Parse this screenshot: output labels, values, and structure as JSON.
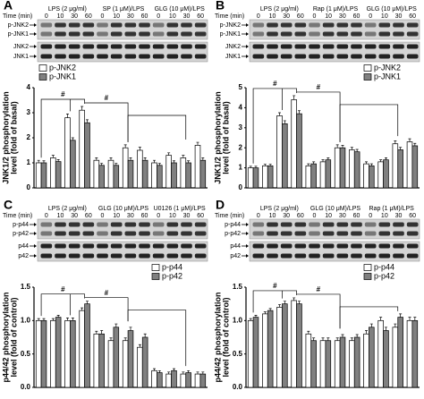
{
  "chart_data": [
    {
      "type": "bar",
      "panel": "A",
      "blot": {
        "time_title": "Time (min)",
        "treatments": [
          "LPS (2 μg/ml)",
          "SP (1 μM)/LPS",
          "GLG (10 μM)/LPS"
        ],
        "times": [
          "0",
          "10",
          "30",
          "60"
        ],
        "rows": [
          "p-JNK2",
          "p-JNK1",
          "JNK2",
          "JNK1"
        ]
      },
      "ylabel": [
        "JNK1/2 phosphorylation",
        "level (fold of basal)"
      ],
      "categories": [
        null,
        null,
        null,
        null,
        null,
        null,
        null,
        null,
        null,
        null,
        null,
        null
      ],
      "series": [
        {
          "name": "p-JNK2",
          "color": "#ffffff",
          "values": [
            1.0,
            1.2,
            2.8,
            3.1,
            1.1,
            1.1,
            1.6,
            1.5,
            1.0,
            1.3,
            1.2,
            1.7
          ],
          "errors": [
            0.1,
            0.1,
            0.15,
            0.15,
            0.1,
            0.1,
            0.12,
            0.12,
            0.1,
            0.1,
            0.1,
            0.12
          ]
        },
        {
          "name": "p-JNK1",
          "color": "#808080",
          "values": [
            1.0,
            1.05,
            1.9,
            2.6,
            0.9,
            0.9,
            1.1,
            1.1,
            0.9,
            1.0,
            1.0,
            1.1
          ],
          "errors": [
            0.08,
            0.08,
            0.1,
            0.12,
            0.08,
            0.08,
            0.1,
            0.1,
            0.08,
            0.08,
            0.08,
            0.1
          ]
        }
      ],
      "ylim": [
        0,
        4
      ],
      "yticks": [
        0,
        1,
        2,
        3,
        4
      ],
      "legend": "top-left",
      "annotations": [
        "#",
        "#"
      ]
    },
    {
      "type": "bar",
      "panel": "B",
      "blot": {
        "time_title": "Time (min)",
        "treatments": [
          "LPS (2 μg/ml)",
          "Rap (1 μM)/LPS",
          "GLG (10 μM)/LPS"
        ],
        "times": [
          "0",
          "10",
          "30",
          "60"
        ],
        "rows": [
          "p-JNK2",
          "p-JNK1",
          "JNK2",
          "JNK1"
        ]
      },
      "ylabel": [
        "JNK1/2 phosphorylation",
        "level (fold of basal)"
      ],
      "categories": [
        null,
        null,
        null,
        null,
        null,
        null,
        null,
        null,
        null,
        null,
        null,
        null
      ],
      "series": [
        {
          "name": "p-JNK2",
          "color": "#ffffff",
          "values": [
            1.0,
            1.1,
            3.6,
            4.4,
            1.1,
            1.3,
            2.0,
            1.9,
            1.2,
            1.3,
            2.2,
            2.3
          ],
          "errors": [
            0.08,
            0.08,
            0.15,
            0.2,
            0.1,
            0.1,
            0.15,
            0.12,
            0.1,
            0.1,
            0.15,
            0.15
          ]
        },
        {
          "name": "p-JNK1",
          "color": "#808080",
          "values": [
            1.0,
            1.1,
            3.2,
            3.7,
            1.2,
            1.4,
            2.0,
            1.8,
            1.1,
            1.4,
            1.9,
            2.1
          ],
          "errors": [
            0.08,
            0.08,
            0.15,
            0.15,
            0.1,
            0.1,
            0.12,
            0.12,
            0.1,
            0.1,
            0.12,
            0.12
          ]
        }
      ],
      "ylim": [
        0,
        5
      ],
      "yticks": [
        0,
        1,
        2,
        3,
        4,
        5
      ],
      "legend": "top-right",
      "annotations": [
        "#",
        "#"
      ]
    },
    {
      "type": "bar",
      "panel": "C",
      "blot": {
        "time_title": "Time (min)",
        "treatments": [
          "LPS (2 μg/ml)",
          "GLG (10 μM)/LPS",
          "U0126 (1 μM)/LPS"
        ],
        "times": [
          "0",
          "10",
          "30",
          "60"
        ],
        "rows": [
          "p-p44",
          "p-p42",
          "p44",
          "p42"
        ]
      },
      "ylabel": [
        "p44/42 phosphorylation",
        "level (fold of control)"
      ],
      "categories": [
        null,
        null,
        null,
        null,
        null,
        null,
        null,
        null,
        null,
        null,
        null,
        null
      ],
      "series": [
        {
          "name": "p-p44",
          "color": "#ffffff",
          "values": [
            1.0,
            1.0,
            1.0,
            1.15,
            0.8,
            0.7,
            0.7,
            0.6,
            0.25,
            0.2,
            0.2,
            0.2
          ],
          "errors": [
            0.03,
            0.03,
            0.04,
            0.04,
            0.04,
            0.04,
            0.04,
            0.04,
            0.03,
            0.03,
            0.03,
            0.03
          ]
        },
        {
          "name": "p-p42",
          "color": "#808080",
          "values": [
            1.0,
            1.05,
            1.0,
            1.25,
            0.8,
            0.9,
            0.85,
            0.75,
            0.22,
            0.25,
            0.22,
            0.2
          ],
          "errors": [
            0.03,
            0.03,
            0.04,
            0.04,
            0.05,
            0.05,
            0.05,
            0.05,
            0.03,
            0.03,
            0.03,
            0.03
          ]
        }
      ],
      "ylim": [
        0,
        1.5
      ],
      "yticks": [
        {
          "value": 0,
          "label": "0.0"
        },
        0.5,
        {
          "value": 1,
          "label": "1.0"
        },
        1.5
      ],
      "legend": "top-right",
      "annotations": [
        "#",
        "#"
      ]
    },
    {
      "type": "bar",
      "panel": "D",
      "blot": {
        "time_title": "Time (min)",
        "treatments": [
          "LPS (2 μg/ml)",
          "GLG (10 μM)/LPS",
          "Rap (1 μM)/LPS"
        ],
        "times": [
          "0",
          "10",
          "30",
          "60"
        ],
        "rows": [
          "p-p44",
          "p-p42",
          "p44",
          "p42"
        ]
      },
      "ylabel": [
        "p44/42 phosphorylation",
        "level (fold of control)"
      ],
      "categories": [
        null,
        null,
        null,
        null,
        null,
        null,
        null,
        null,
        null,
        null,
        null,
        null
      ],
      "series": [
        {
          "name": "p-p44",
          "color": "#ffffff",
          "values": [
            1.0,
            1.1,
            1.2,
            1.3,
            0.8,
            0.7,
            0.7,
            0.7,
            0.8,
            1.0,
            0.9,
            1.0
          ],
          "errors": [
            0.03,
            0.03,
            0.04,
            0.04,
            0.04,
            0.04,
            0.04,
            0.04,
            0.05,
            0.05,
            0.05,
            0.05
          ]
        },
        {
          "name": "p-p42",
          "color": "#808080",
          "values": [
            1.05,
            1.15,
            1.25,
            1.25,
            0.7,
            0.7,
            0.75,
            0.75,
            0.9,
            0.85,
            1.05,
            1.0
          ],
          "errors": [
            0.03,
            0.03,
            0.04,
            0.04,
            0.04,
            0.04,
            0.04,
            0.04,
            0.05,
            0.05,
            0.05,
            0.05
          ]
        }
      ],
      "ylim": [
        0,
        1.5
      ],
      "yticks": [
        {
          "value": 0,
          "label": "0.0"
        },
        0.5,
        {
          "value": 1,
          "label": "1.0"
        },
        1.5
      ],
      "legend": "top-right",
      "annotations": [
        "#",
        "#"
      ]
    }
  ]
}
